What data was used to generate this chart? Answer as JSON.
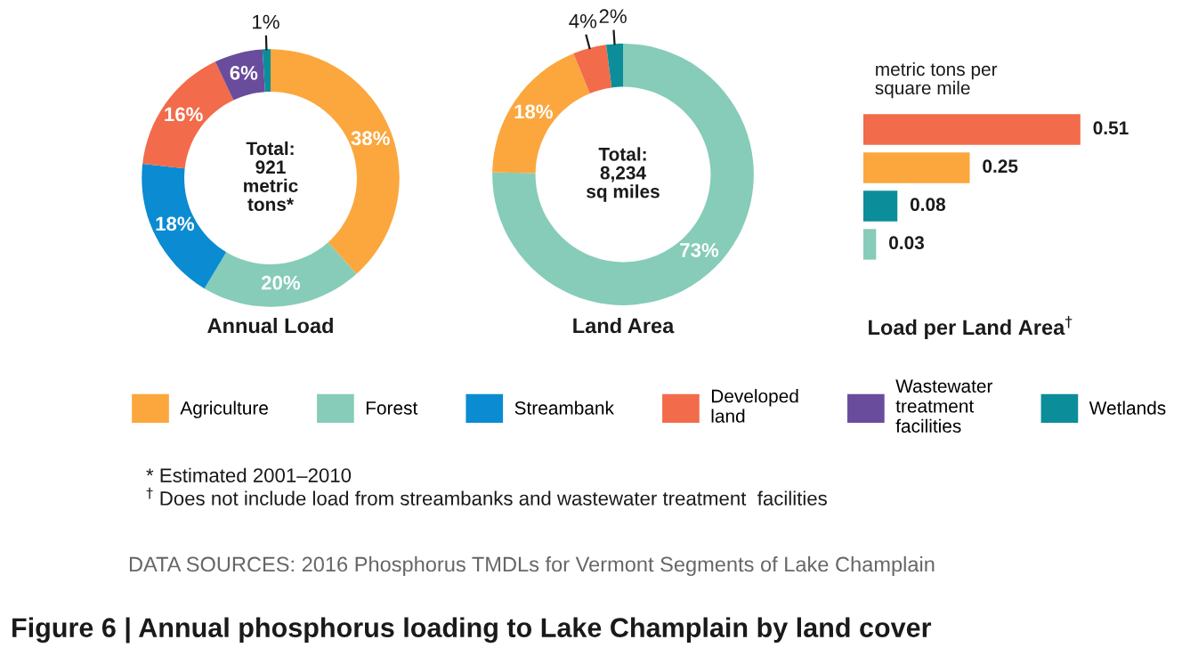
{
  "chart_data": [
    {
      "type": "donut",
      "title": "Annual Load",
      "categories": [
        "Agriculture",
        "Forest",
        "Streambank",
        "Developed land",
        "Wastewater treatment facilities",
        "Wetlands"
      ],
      "values": [
        38,
        20,
        18,
        16,
        6,
        1
      ],
      "value_labels": [
        "38%",
        "20%",
        "18%",
        "16%",
        "6%",
        "1%"
      ],
      "colors": [
        "#fba73e",
        "#86ccb8",
        "#0a8bd2",
        "#f26b4a",
        "#6a4c9c",
        "#0b8e9a"
      ],
      "data_labels": true,
      "legend": "bottom",
      "annotations": [
        "Total:\n921\nmetric\ntons*",
        "* Estimated 2001–2010",
        "DATA SOURCES: 2016 Phosphorus TMDLs for Vermont Segments of Lake Champlain",
        "Figure 6 | Annual phosphorus loading to Lake Champlain by land cover"
      ]
    },
    {
      "type": "donut",
      "title": "Land Area",
      "categories": [
        null,
        null,
        null,
        null
      ],
      "values": [
        73,
        18,
        4,
        2
      ],
      "value_labels": [
        "73%",
        "18%",
        "4%",
        "2%"
      ],
      "colors": [
        "#86ccb8",
        "#fba73e",
        "#f26b4a",
        "#0b8e9a"
      ],
      "data_labels": true,
      "annotations": [
        "Total:\n8,234\nsq miles"
      ]
    },
    {
      "type": "bar",
      "orientation": "horizontal",
      "title": "Load per Land Area$^{†}$",
      "subtitle": "metric tons per\nsquare mile",
      "categories": [
        null,
        null,
        null,
        null
      ],
      "values": [
        0.51,
        0.25,
        0.08,
        0.03
      ],
      "colors": [
        "#f26b4a",
        "#fba73e",
        "#0b8e9a",
        "#86ccb8"
      ],
      "data_labels": true,
      "annotations": [
        "$^{†}$ Does not include load from streambanks and wastewater treatment  facilities"
      ]
    }
  ]
}
